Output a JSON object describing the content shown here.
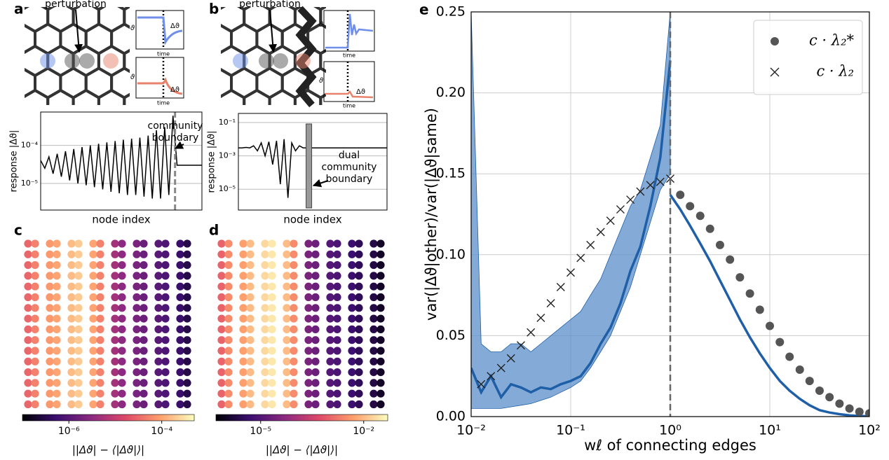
{
  "chart_data": [
    {
      "type": "response",
      "label": "a",
      "annotation": "perturbation",
      "inset": {
        "ylabel": "ϑ",
        "xlabel": "time",
        "delta": "Δϑ"
      },
      "ylabel": "response |Δϑ|",
      "xlabel": "node index",
      "boundary_label": [
        "community",
        "boundary"
      ],
      "log_y": true,
      "ylim": [
        2e-06,
        0.00075
      ],
      "yticks": [
        {
          "value": 1e-05,
          "label": "10⁻⁵"
        },
        {
          "value": 0.0001,
          "label": "10⁻⁴"
        }
      ],
      "boundary": 32.5,
      "boundary_style": "line",
      "color": "#000000",
      "values": [
        4e-05,
        2.5e-05,
        5e-05,
        1.8e-05,
        6e-05,
        1.5e-05,
        7e-05,
        1.2e-05,
        8e-05,
        1e-05,
        9e-05,
        9e-06,
        0.0001,
        8e-06,
        0.00011,
        7e-06,
        0.00012,
        6e-06,
        0.00013,
        5.5e-06,
        0.00014,
        5e-06,
        0.00015,
        5e-06,
        0.00016,
        4.5e-06,
        0.00018,
        4e-06,
        0.00025,
        4e-06,
        0.0003,
        5e-06,
        0.0006,
        3e-05,
        3e-05,
        3e-05,
        3e-05,
        3e-05,
        3e-05,
        3e-05
      ]
    },
    {
      "type": "response",
      "label": "b",
      "annotation": "perturbation",
      "inset": {
        "ylabel": "ϑ",
        "xlabel": "time",
        "delta": "Δϑ"
      },
      "ylabel": "response |Δϑ|",
      "xlabel": "node index",
      "boundary_label": [
        "dual",
        "community",
        "boundary"
      ],
      "log_y": true,
      "ylim": [
        5.6e-07,
        0.35
      ],
      "yticks": [
        {
          "value": 1e-05,
          "label": "10⁻⁵"
        },
        {
          "value": 0.001,
          "label": "10⁻³"
        },
        {
          "value": 0.1,
          "label": "10⁻¹"
        }
      ],
      "boundary": 18.5,
      "boundary_style": "band",
      "color": "#000000",
      "values": [
        0.003,
        0.003,
        0.0032,
        0.003,
        0.004,
        0.002,
        0.006,
        0.001,
        0.007,
        0.0003,
        0.008,
        2e-05,
        0.01,
        3e-06,
        0.006,
        0.002,
        0.004,
        0.003,
        0.003,
        0.003,
        0.003,
        0.003,
        0.003,
        0.003,
        0.003,
        0.003,
        0.003,
        0.003,
        0.003,
        0.003,
        0.003,
        0.003,
        0.003,
        0.003,
        0.003,
        0.003,
        0.003,
        0.003,
        0.003,
        0.003
      ]
    },
    {
      "type": "lattice",
      "label": "c",
      "columns": [
        3e-05,
        5e-05,
        8e-05,
        0.0001,
        0.00015,
        0.0002,
        0.0001,
        5e-05,
        5e-06,
        3e-06,
        2e-06,
        1.5e-06,
        1e-06,
        8e-07,
        5e-07,
        3e-07
      ],
      "clim": [
        1e-07,
        0.0005
      ],
      "cticks": [
        {
          "value": 1e-06,
          "label": "10⁻⁶"
        },
        {
          "value": 0.0001,
          "label": "10⁻⁴"
        }
      ],
      "clabel": "||Δϑ| − ⟨|Δϑ|⟩|",
      "colormap": [
        "#000004",
        "#3b0f70",
        "#8c2981",
        "#de4968",
        "#fe9f6d",
        "#fcfdbf"
      ]
    },
    {
      "type": "lattice",
      "label": "d",
      "columns": [
        0.001,
        0.003,
        0.005,
        0.01,
        0.02,
        0.03,
        0.01,
        0.003,
        3e-05,
        2e-05,
        1e-05,
        8e-06,
        5e-06,
        3e-06,
        2e-06,
        1e-06
      ],
      "clim": [
        5e-07,
        0.05
      ],
      "cticks": [
        {
          "value": 1e-05,
          "label": "10⁻⁵"
        },
        {
          "value": 0.01,
          "label": "10⁻²"
        }
      ],
      "clabel": "||Δϑ| − ⟨|Δϑ|⟩|",
      "colormap": [
        "#000004",
        "#3b0f70",
        "#8c2981",
        "#de4968",
        "#fe9f6d",
        "#fcfdbf"
      ]
    },
    {
      "type": "line",
      "label": "e",
      "xlabel": "wℓ of connecting edges",
      "ylabel": "var(|Δϑ|other)/var(|Δϑ|same)",
      "log_x": true,
      "grid": true,
      "legend": "upper right",
      "xlim": [
        0.01,
        100
      ],
      "ylim": [
        0,
        0.25
      ],
      "xticks": [
        {
          "value": 0.01,
          "label": "10⁻²"
        },
        {
          "value": 0.1,
          "label": "10⁻¹"
        },
        {
          "value": 1,
          "label": "10⁰"
        },
        {
          "value": 10,
          "label": "10¹"
        },
        {
          "value": 100,
          "label": "10²"
        }
      ],
      "yticks": [
        {
          "value": 0,
          "label": "0.00"
        },
        0.05,
        {
          "value": 0.1,
          "label": "0.10"
        },
        0.15,
        {
          "value": 0.2,
          "label": "0.20"
        },
        0.25
      ],
      "vline": 1,
      "series": [
        {
          "marker": "band",
          "color": "#5b8fc9",
          "x": [
            0.01,
            0.0126,
            0.0158,
            0.02,
            0.0251,
            0.0316,
            0.0398,
            0.0501,
            0.0631,
            0.0794,
            0.1,
            0.126,
            0.158,
            0.2,
            0.251,
            0.316,
            0.398,
            0.501,
            0.631,
            0.794,
            1
          ],
          "upper": [
            0.25,
            0.045,
            0.04,
            0.04,
            0.045,
            0.045,
            0.04,
            0.045,
            0.05,
            0.055,
            0.06,
            0.065,
            0.075,
            0.085,
            0.1,
            0.115,
            0.13,
            0.14,
            0.16,
            0.18,
            0.25
          ],
          "lower": [
            0.005,
            0.005,
            0.005,
            0.005,
            0.006,
            0.007,
            0.008,
            0.01,
            0.012,
            0.015,
            0.018,
            0.022,
            0.03,
            0.04,
            0.05,
            0.065,
            0.08,
            0.1,
            0.12,
            0.14,
            0.15
          ]
        },
        {
          "marker": "line",
          "color": "#1f5fa8",
          "x": [
            0.01,
            0.0126,
            0.0158,
            0.02,
            0.0251,
            0.0316,
            0.0398,
            0.0501,
            0.0631,
            0.0794,
            0.1,
            0.126,
            0.158,
            0.2,
            0.251,
            0.316,
            0.398,
            0.501,
            0.631,
            0.794,
            1
          ],
          "values": [
            0.03,
            0.015,
            0.025,
            0.012,
            0.02,
            0.018,
            0.015,
            0.018,
            0.017,
            0.02,
            0.022,
            0.025,
            0.033,
            0.045,
            0.055,
            0.07,
            0.09,
            0.105,
            0.13,
            0.16,
            0.22
          ]
        },
        {
          "marker": "line",
          "color": "#1f5fa8",
          "x": [
            1,
            1.26,
            1.58,
            2,
            2.51,
            3.16,
            3.98,
            5.01,
            6.31,
            7.94,
            10,
            12.6,
            15.8,
            20,
            25.1,
            31.6,
            39.8,
            50.1,
            63.1,
            79.4,
            100
          ],
          "values": [
            0.137,
            0.128,
            0.118,
            0.107,
            0.096,
            0.084,
            0.072,
            0.06,
            0.049,
            0.039,
            0.03,
            0.022,
            0.016,
            0.011,
            0.007,
            0.004,
            0.0025,
            0.0015,
            0.0008,
            0.0004,
            0.0002
          ]
        },
        {
          "name": "c · λ₂*",
          "marker": "dot",
          "color": "#555555",
          "x": [
            1.26,
            1.58,
            2,
            2.51,
            3.16,
            3.98,
            5.01,
            6.31,
            7.94,
            10,
            12.6,
            15.8,
            20,
            25.1,
            31.6,
            39.8,
            50.1,
            63.1,
            79.4,
            100
          ],
          "values": [
            0.137,
            0.13,
            0.124,
            0.116,
            0.106,
            0.097,
            0.086,
            0.076,
            0.066,
            0.056,
            0.046,
            0.037,
            0.029,
            0.022,
            0.016,
            0.012,
            0.008,
            0.005,
            0.003,
            0.002
          ]
        },
        {
          "name": "c · λ₂",
          "marker": "x",
          "color": "#222222",
          "x": [
            0.0126,
            0.0158,
            0.02,
            0.0251,
            0.0316,
            0.0398,
            0.0501,
            0.0631,
            0.0794,
            0.1,
            0.126,
            0.158,
            0.2,
            0.251,
            0.316,
            0.398,
            0.501,
            0.631,
            0.794,
            1
          ],
          "values": [
            0.02,
            0.025,
            0.03,
            0.036,
            0.044,
            0.052,
            0.061,
            0.07,
            0.08,
            0.089,
            0.098,
            0.106,
            0.114,
            0.121,
            0.128,
            0.134,
            0.139,
            0.143,
            0.145,
            0.147
          ]
        }
      ]
    }
  ]
}
